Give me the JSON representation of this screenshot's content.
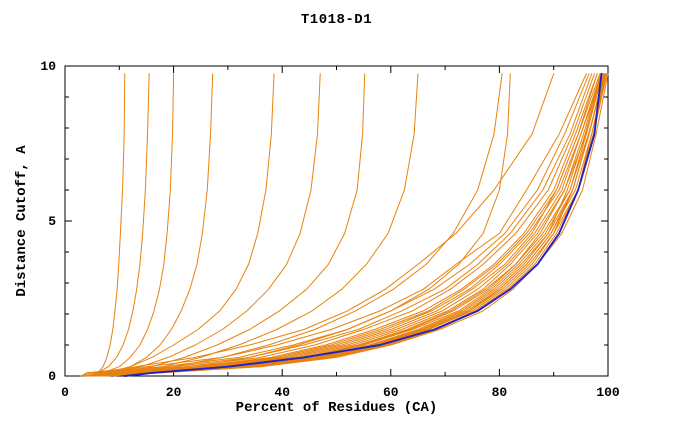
{
  "title": "T1018-D1",
  "chart_data": {
    "type": "line",
    "title": "T1018-D1",
    "xlabel": "Percent of Residues (CA)",
    "ylabel": "Distance Cutoff, A",
    "xlim": [
      0,
      100
    ],
    "ylim": [
      0,
      10
    ],
    "xticks": [
      0,
      20,
      40,
      60,
      80,
      100
    ],
    "yticks": [
      0,
      5,
      10
    ],
    "x_minor_step": 10,
    "y_minor_step": 1,
    "grid": false,
    "legend": "none",
    "colors": {
      "model": "#e8820d",
      "reference": "#2222c8",
      "axis": "#000000"
    },
    "y_levels": [
      0,
      0.1,
      0.3,
      0.6,
      1.0,
      1.5,
      2.1,
      2.8,
      3.6,
      4.6,
      6.0,
      7.8,
      9.75
    ],
    "series": [
      {
        "name": "model-01",
        "role": "model",
        "x": [
          5,
          6,
          7,
          7.7,
          8.3,
          8.8,
          9.2,
          9.6,
          9.9,
          10.2,
          10.6,
          10.9,
          11
        ]
      },
      {
        "name": "model-02",
        "role": "model",
        "x": [
          4,
          6,
          8,
          9.5,
          10.7,
          11.7,
          12.5,
          13.2,
          13.8,
          14.3,
          14.8,
          15.2,
          15.5
        ]
      },
      {
        "name": "model-03",
        "role": "model",
        "x": [
          4,
          7,
          10,
          12,
          13.8,
          15.2,
          16.4,
          17.4,
          18.2,
          18.8,
          19.4,
          19.8,
          20
        ]
      },
      {
        "name": "model-04",
        "role": "model",
        "x": [
          5,
          8,
          12,
          15,
          17.5,
          19.6,
          21.4,
          23,
          24.3,
          25.3,
          26.2,
          26.8,
          27.2
        ]
      },
      {
        "name": "model-05",
        "role": "model",
        "x": [
          6,
          8,
          12,
          16,
          20,
          24.5,
          28.5,
          31.5,
          33.8,
          35.5,
          37,
          38,
          38.5
        ]
      },
      {
        "name": "model-06",
        "role": "model",
        "x": [
          6,
          9,
          14,
          19,
          24,
          29,
          33.5,
          37.5,
          40.8,
          43.3,
          45.3,
          46.5,
          47
        ]
      },
      {
        "name": "model-07",
        "role": "model",
        "x": [
          7,
          10,
          16,
          22,
          28,
          34,
          39.5,
          44.5,
          48.5,
          51.5,
          53.8,
          54.8,
          55.2
        ]
      },
      {
        "name": "model-08",
        "role": "model",
        "x": [
          7,
          11,
          18,
          25,
          32,
          39,
          45.5,
          51,
          55.5,
          59.5,
          62.5,
          64.3,
          65
        ]
      },
      {
        "name": "model-09",
        "role": "model",
        "x": [
          8,
          12,
          20,
          29,
          37.5,
          46,
          53.5,
          60.5,
          66.5,
          71.5,
          76,
          79,
          80.5
        ]
      },
      {
        "name": "model-10",
        "role": "model",
        "x": [
          9,
          14,
          24,
          34,
          43,
          52,
          60,
          67,
          72.5,
          77,
          80,
          81.5,
          82
        ]
      },
      {
        "name": "model-11",
        "role": "model",
        "x": [
          4,
          6,
          13,
          24,
          34,
          44,
          52,
          59,
          65,
          72,
          79,
          86,
          90
        ]
      },
      {
        "name": "model-12",
        "role": "model",
        "x": [
          3,
          4,
          15,
          29,
          39,
          49,
          58,
          66,
          72,
          80,
          85,
          91,
          96
        ]
      },
      {
        "name": "model-13",
        "role": "model",
        "x": [
          3,
          4,
          18,
          32,
          42,
          52,
          60,
          68,
          74.5,
          81,
          87,
          92,
          96.5
        ]
      },
      {
        "name": "model-14",
        "role": "model",
        "x": [
          3,
          5,
          20,
          34,
          44,
          54,
          62,
          70,
          76,
          82,
          88,
          93,
          97
        ]
      },
      {
        "name": "model-15",
        "role": "model",
        "x": [
          4,
          6,
          22,
          36,
          46,
          55,
          64,
          71,
          77,
          83,
          89,
          93.5,
          97.5
        ]
      },
      {
        "name": "model-16",
        "role": "model",
        "x": [
          3.5,
          8,
          24,
          38,
          48,
          57,
          66,
          73,
          79,
          84.5,
          90,
          94,
          98
        ]
      },
      {
        "name": "model-17",
        "role": "model",
        "x": [
          4,
          9,
          25,
          39,
          49,
          58,
          67,
          73.5,
          79.5,
          85,
          90.5,
          94.5,
          98.5
        ]
      },
      {
        "name": "model-18",
        "role": "model",
        "x": [
          4,
          9.5,
          26,
          40,
          50,
          59,
          67.5,
          74.5,
          80,
          85.5,
          91,
          95,
          99
        ]
      },
      {
        "name": "model-19",
        "role": "model",
        "x": [
          4,
          10,
          27,
          41,
          51,
          60,
          68.5,
          75,
          81,
          86,
          90.5,
          94.5,
          98
        ]
      },
      {
        "name": "model-20",
        "role": "model",
        "x": [
          4.5,
          11,
          28,
          42,
          52,
          61,
          69.5,
          76,
          81.5,
          86.5,
          91.5,
          95,
          98.7
        ]
      },
      {
        "name": "model-21",
        "role": "model",
        "x": [
          5,
          12,
          29,
          43,
          53,
          62,
          70.5,
          77,
          82,
          87,
          92,
          96,
          99
        ]
      },
      {
        "name": "model-22",
        "role": "model",
        "x": [
          5,
          12.5,
          30,
          44,
          54,
          63,
          71,
          77.5,
          83,
          87.5,
          92,
          95.5,
          98.7
        ]
      },
      {
        "name": "model-23",
        "role": "model",
        "x": [
          5,
          13,
          30.5,
          44.5,
          54.5,
          63.5,
          71.5,
          78,
          83,
          88,
          93,
          96.4,
          99.5
        ]
      },
      {
        "name": "model-24",
        "role": "model",
        "x": [
          5.5,
          13.5,
          31,
          45,
          55,
          64,
          72.5,
          78.5,
          83.5,
          88.5,
          93,
          96,
          99
        ]
      },
      {
        "name": "model-25",
        "role": "model",
        "x": [
          5.5,
          14,
          32,
          46,
          56,
          65,
          73,
          79,
          84,
          89,
          92.5,
          95.8,
          98.8
        ]
      },
      {
        "name": "model-26",
        "role": "model",
        "x": [
          6,
          14,
          32.5,
          46.5,
          56.5,
          65.5,
          73.5,
          79.5,
          84.5,
          89,
          93.5,
          96.5,
          99.4
        ]
      },
      {
        "name": "model-27",
        "role": "model",
        "x": [
          6,
          15,
          33,
          47,
          57,
          66,
          74,
          80,
          85,
          89.5,
          93.5,
          96.5,
          99.3
        ]
      },
      {
        "name": "model-28",
        "role": "model",
        "x": [
          6,
          15,
          33.5,
          47.5,
          57.5,
          66.5,
          74.5,
          80,
          85,
          89.5,
          94,
          97,
          99.6
        ]
      },
      {
        "name": "model-29",
        "role": "model",
        "x": [
          6,
          15.5,
          34,
          48,
          58,
          67,
          74.5,
          80.5,
          85.5,
          90,
          93.5,
          96.5,
          99.2
        ]
      },
      {
        "name": "model-30",
        "role": "model",
        "x": [
          6.5,
          16,
          34.5,
          48.5,
          58.5,
          67,
          75,
          81,
          86,
          90,
          94.5,
          97,
          99.8
        ]
      },
      {
        "name": "model-31",
        "role": "model",
        "x": [
          6.5,
          16.5,
          35,
          49,
          59,
          68,
          75.5,
          81.5,
          86.5,
          90.5,
          94.5,
          97,
          99.5
        ]
      },
      {
        "name": "model-32",
        "role": "model",
        "x": [
          7,
          17,
          35.5,
          49.5,
          59.5,
          68.5,
          76,
          82,
          87,
          91,
          94.5,
          97.3,
          99.8
        ]
      },
      {
        "name": "model-33",
        "role": "model",
        "x": [
          7,
          17.5,
          36,
          50,
          60,
          69,
          77,
          82.5,
          87,
          91.5,
          95.3,
          97.8,
          100
        ]
      },
      {
        "name": "reference",
        "role": "reference",
        "x": [
          11,
          16,
          30,
          44,
          58,
          68,
          76,
          82,
          87,
          91,
          94.5,
          97.5,
          98.8
        ]
      }
    ]
  }
}
